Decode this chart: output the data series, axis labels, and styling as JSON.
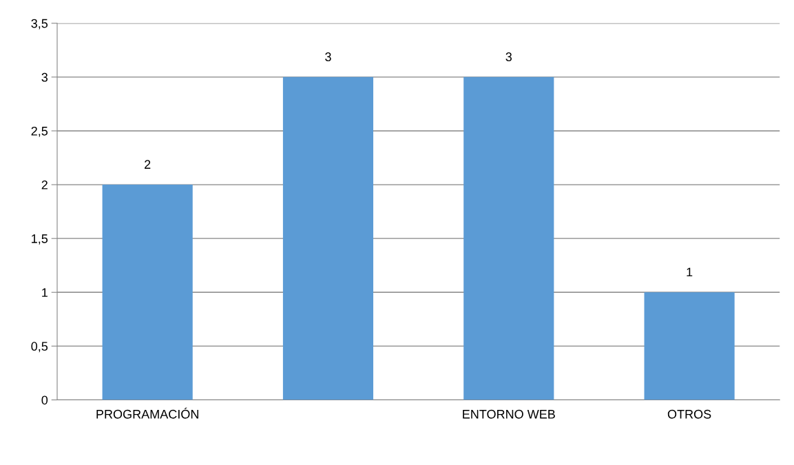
{
  "chart_data": {
    "type": "bar",
    "categories": [
      "PROGRAMACIÓN",
      null,
      "ENTORNO WEB",
      "OTROS"
    ],
    "values": [
      2,
      3,
      3,
      1
    ],
    "color": "#5b9bd5",
    "data_labels": true,
    "ylim": [
      0,
      3.5
    ],
    "yticks": [
      0,
      {
        "value": 0.5,
        "label": "0,5"
      },
      1,
      {
        "value": 1.5,
        "label": "1,5"
      },
      2,
      {
        "value": 2.5,
        "label": "2,5"
      },
      3,
      {
        "value": 3.5,
        "label": "3,5"
      }
    ],
    "grid": "y"
  }
}
